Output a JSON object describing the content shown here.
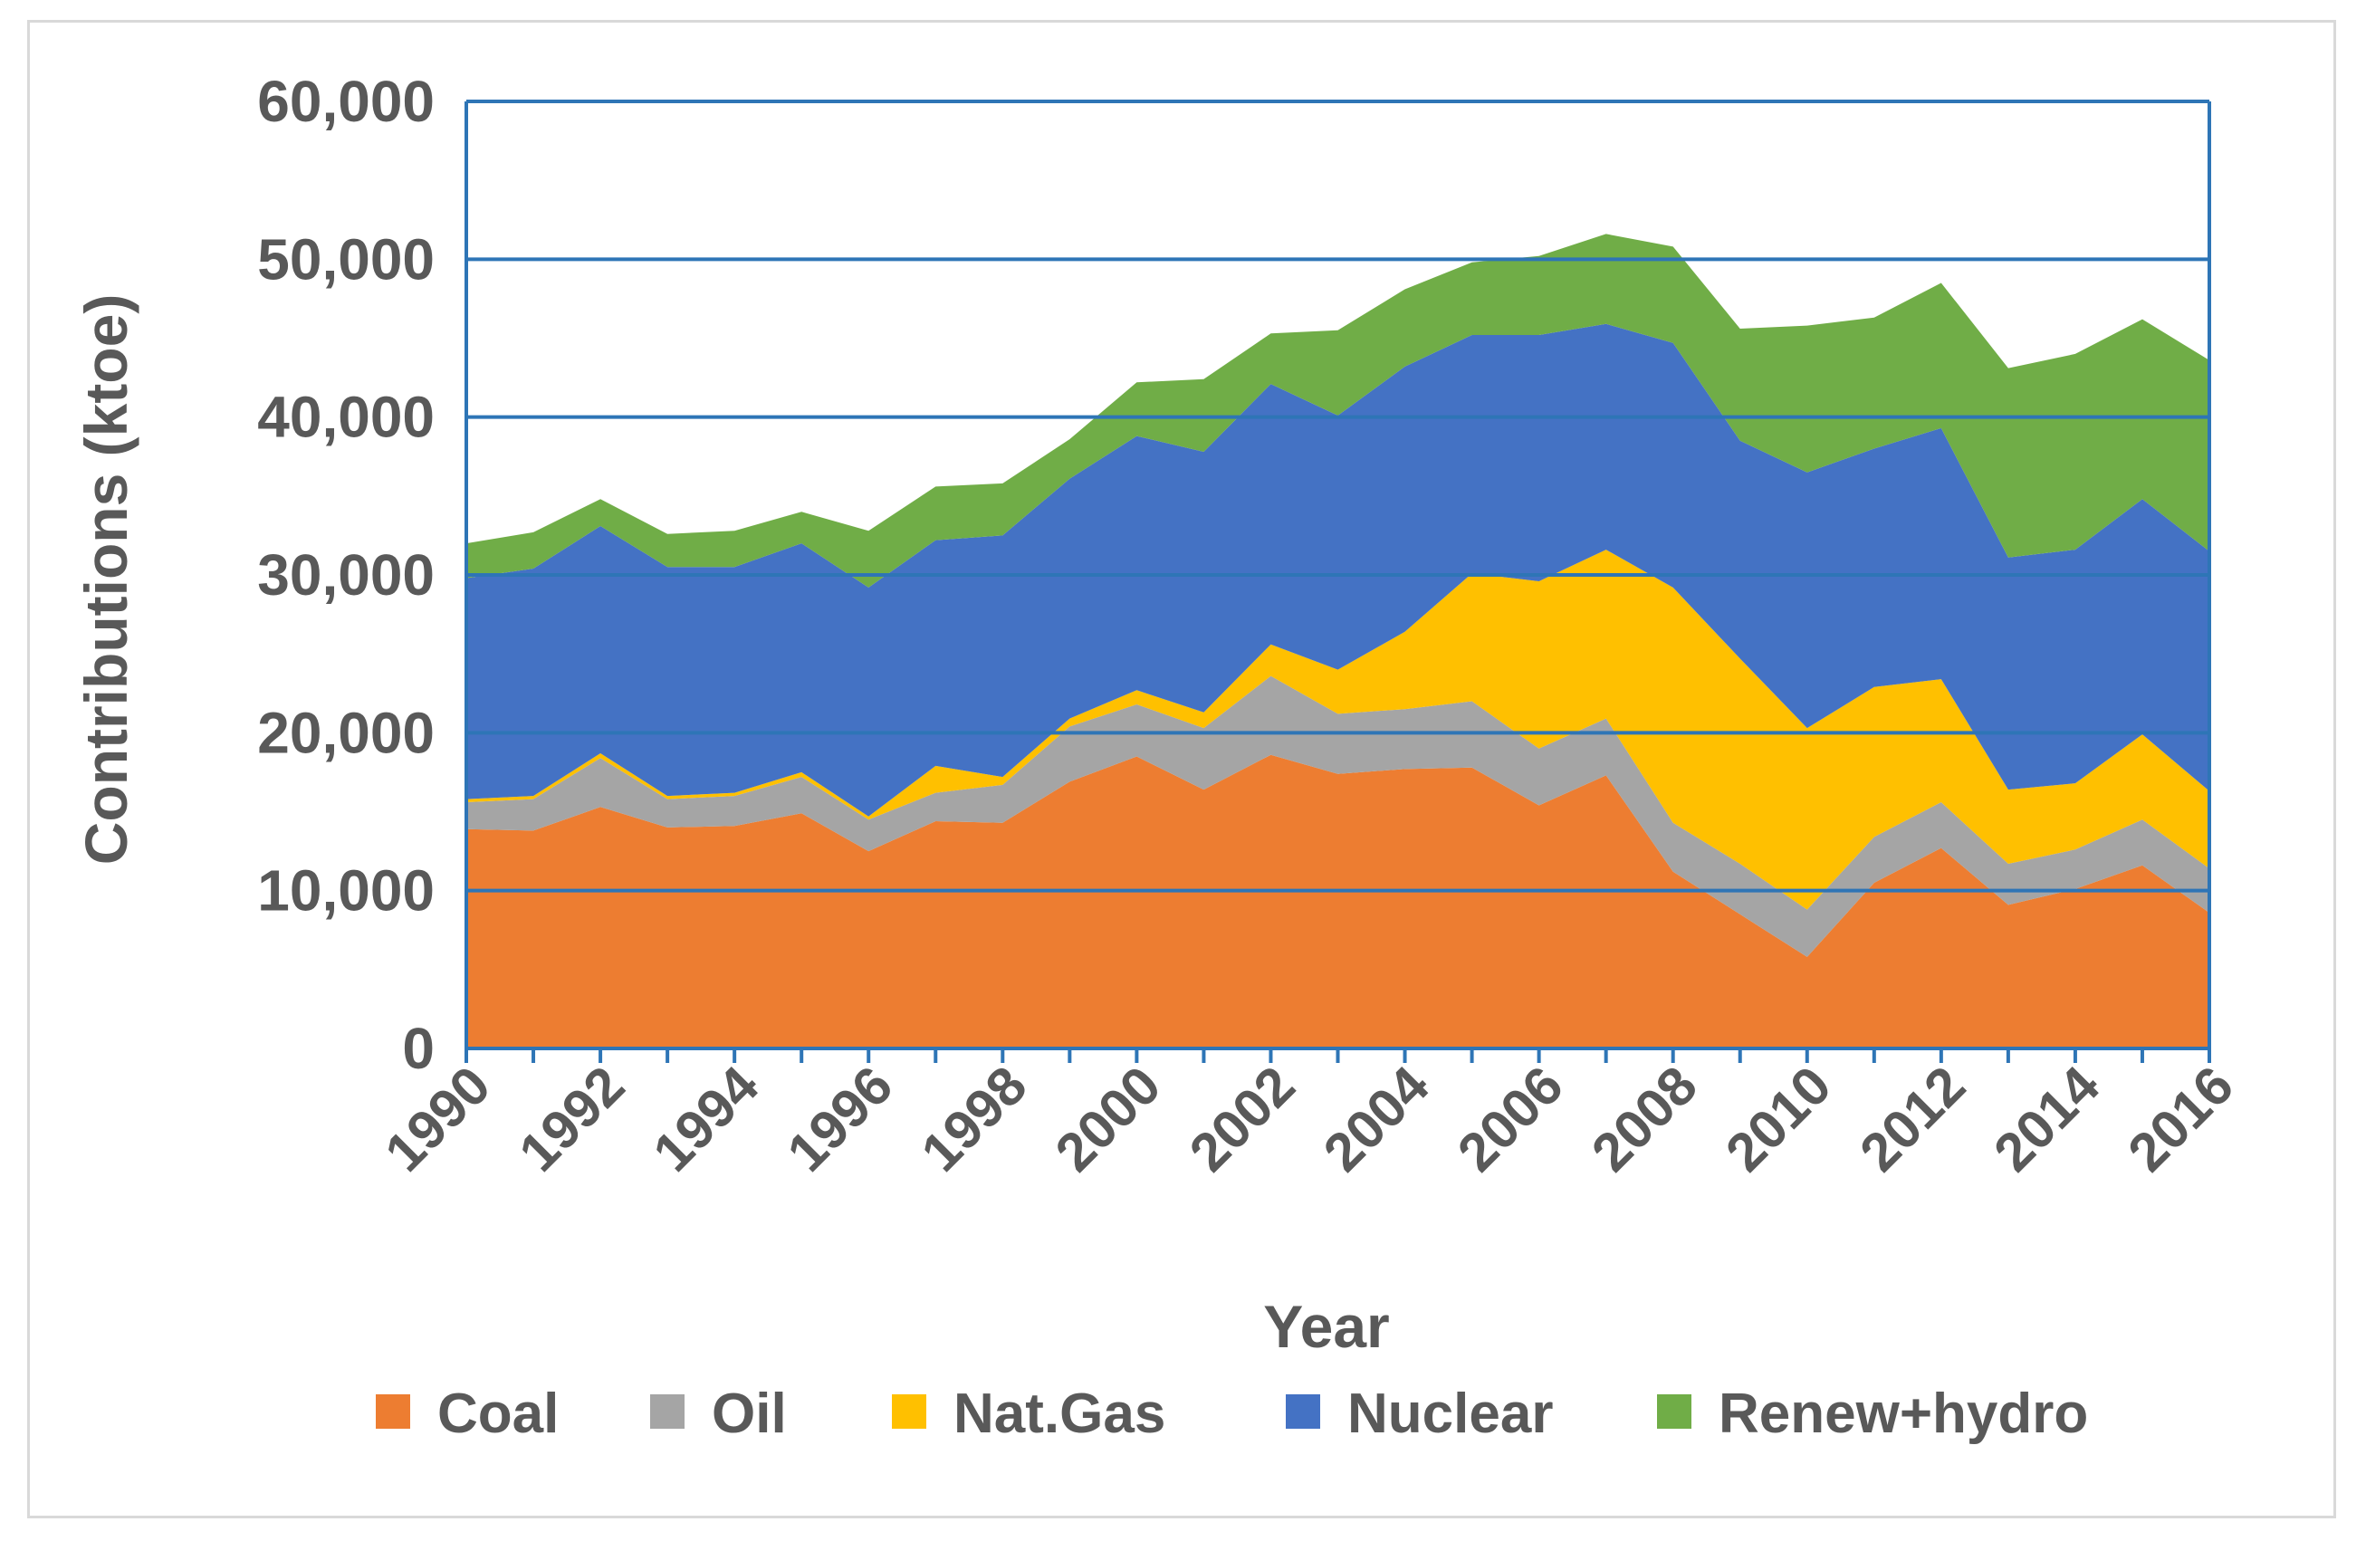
{
  "chart_data": {
    "type": "area",
    "stacked": true,
    "title": "",
    "xlabel": "Year",
    "ylabel": "Contributions (ktoe)",
    "ylim": [
      0,
      60000
    ],
    "yticks": [
      "0",
      "10,000",
      "20,000",
      "30,000",
      "40,000",
      "50,000",
      "60,000"
    ],
    "ytick_values": [
      0,
      10000,
      20000,
      30000,
      40000,
      50000,
      60000
    ],
    "xtick_labels": [
      "1990",
      "1992",
      "1994",
      "1996",
      "1998",
      "2000",
      "2002",
      "2004",
      "2006",
      "2008",
      "2010",
      "2012",
      "2014",
      "2016"
    ],
    "x": [
      1990,
      1991,
      1992,
      1993,
      1994,
      1995,
      1996,
      1997,
      1998,
      1999,
      2000,
      2001,
      2002,
      2003,
      2004,
      2005,
      2006,
      2007,
      2008,
      2009,
      2010,
      2011,
      2012,
      2013,
      2014,
      2015,
      2016
    ],
    "series": [
      {
        "name": "Coal",
        "color": "#ed7d31",
        "values": [
          13900,
          13800,
          15300,
          14000,
          14100,
          14900,
          12500,
          14400,
          14300,
          16900,
          18500,
          16400,
          18600,
          17400,
          17700,
          17800,
          15400,
          17300,
          11200,
          8500,
          5800,
          10500,
          12700,
          9100,
          10100,
          11600,
          8600
        ]
      },
      {
        "name": "Oil",
        "color": "#a5a5a5",
        "values": [
          1700,
          2000,
          3100,
          1800,
          1900,
          2300,
          2000,
          1800,
          2400,
          3500,
          3300,
          3900,
          5000,
          3800,
          3800,
          4200,
          3600,
          3600,
          3100,
          3200,
          3000,
          2900,
          2900,
          2600,
          2500,
          2900,
          2800
        ]
      },
      {
        "name": "Nat.Gas",
        "color": "#ffc000",
        "values": [
          200,
          200,
          300,
          200,
          200,
          300,
          200,
          1700,
          500,
          500,
          900,
          1000,
          2000,
          2800,
          4900,
          8100,
          10600,
          10700,
          14900,
          13000,
          11500,
          9500,
          7800,
          4700,
          4200,
          5400,
          4900
        ]
      },
      {
        "name": "Nuclear",
        "color": "#4472c4",
        "values": [
          14000,
          14400,
          14400,
          14500,
          14300,
          14500,
          14500,
          14300,
          15300,
          15200,
          16100,
          16500,
          16500,
          16100,
          16800,
          15100,
          15600,
          14300,
          15500,
          13800,
          16200,
          15100,
          15900,
          14700,
          14800,
          14900,
          15200
        ]
      },
      {
        "name": "Renew+hydro",
        "color": "#70ad47",
        "values": [
          2200,
          2300,
          1700,
          2100,
          2300,
          2000,
          3600,
          3400,
          3300,
          2500,
          3400,
          4600,
          3200,
          5400,
          4900,
          4600,
          5000,
          5700,
          6100,
          7100,
          9300,
          8300,
          9200,
          12000,
          12400,
          11400,
          12100
        ]
      }
    ],
    "legend_position": "bottom",
    "grid": "horizontal"
  }
}
